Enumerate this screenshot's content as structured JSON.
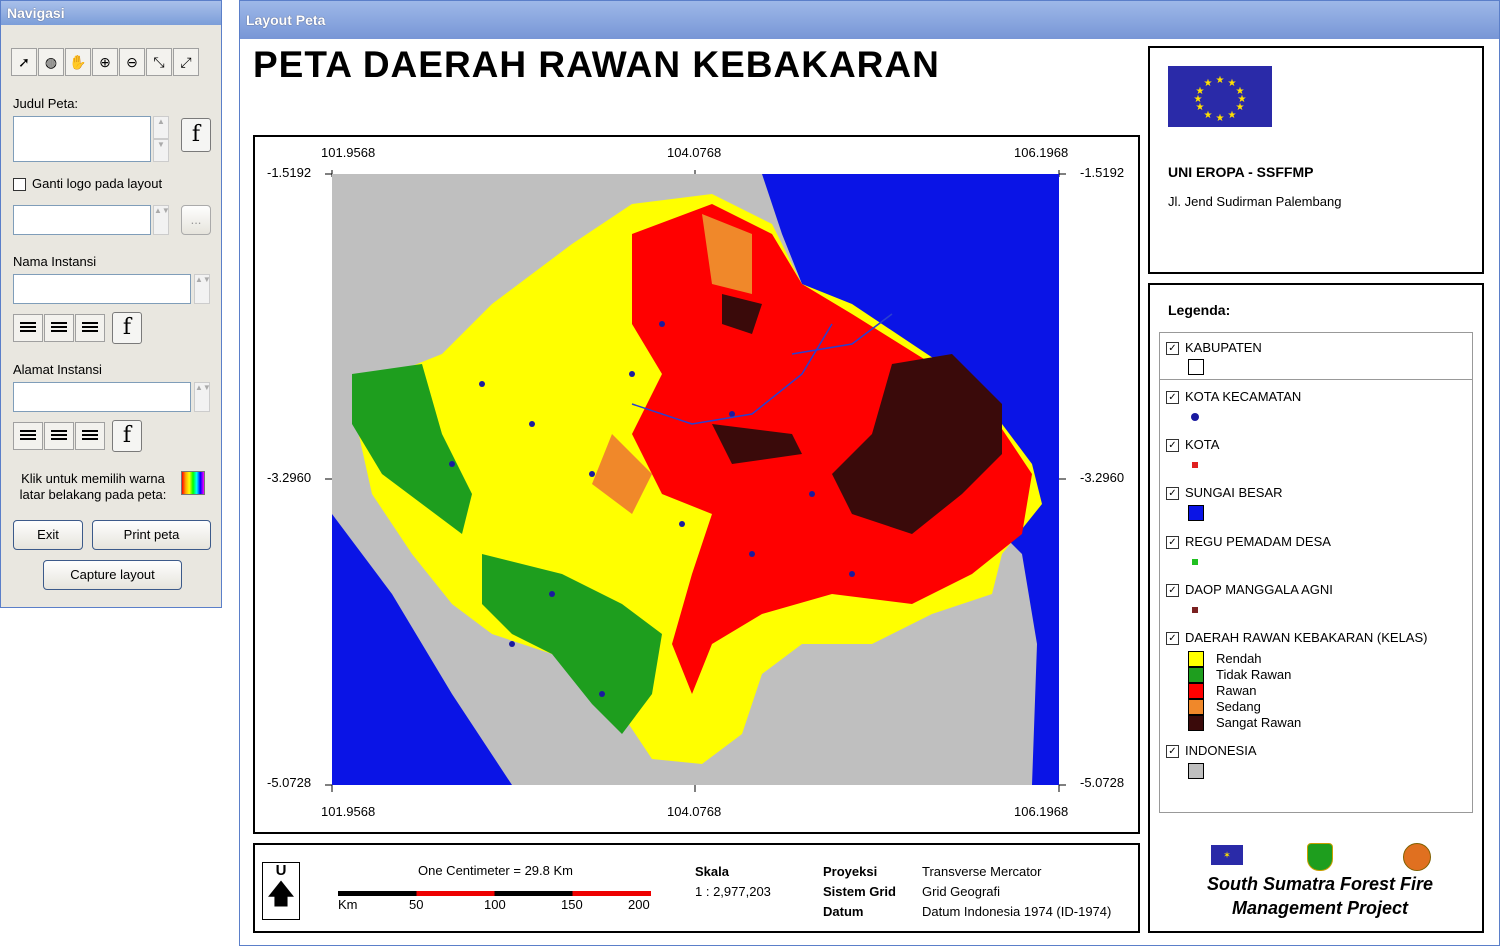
{
  "nav": {
    "title": "Navigasi",
    "tools": [
      "select-icon",
      "globe-zoom-icon",
      "pan-hand-icon",
      "zoom-in-icon",
      "zoom-out-icon",
      "zoom-extent-in-icon",
      "full-extent-icon"
    ],
    "judul_label": "Judul Peta:",
    "ganti_logo_label": "Ganti logo pada layout",
    "nama_instansi_label": "Nama Instansi",
    "alamat_instansi_label": "Alamat Instansi",
    "warna_label_1": "Klik untuk memilih warna",
    "warna_label_2": "latar belakang pada peta:",
    "exit": "Exit",
    "print": "Print peta",
    "capture": "Capture layout",
    "font_label": "f",
    "browse_label": "..."
  },
  "layout": {
    "title": "Layout Peta",
    "map_title": "PETA DAERAH RAWAN KEBAKARAN",
    "coords": {
      "x_left": "101.9568",
      "x_mid": "104.0768",
      "x_right": "106.1968",
      "y_top": "-1.5192",
      "y_mid": "-3.2960",
      "y_bot": "-5.0728"
    },
    "org": {
      "name": "UNI EROPA - SSFFMP",
      "address": "Jl. Jend Sudirman Palembang"
    },
    "legend": {
      "title": "Legenda:",
      "layers": [
        "KABUPATEN",
        "KOTA KECAMATAN",
        "KOTA",
        "SUNGAI BESAR",
        "REGU PEMADAM DESA",
        "DAOP MANGGALA AGNI",
        "DAERAH RAWAN KEBAKARAN (KELAS)",
        "INDONESIA"
      ],
      "classes": [
        {
          "label": "Rendah",
          "color": "#ffff00"
        },
        {
          "label": "Tidak Rawan",
          "color": "#1e9e1e"
        },
        {
          "label": "Rawan",
          "color": "#ff0000"
        },
        {
          "label": "Sedang",
          "color": "#f0882a"
        },
        {
          "label": "Sangat Rawan",
          "color": "#3a0a0a"
        }
      ]
    },
    "footer": {
      "north": "U",
      "scale_text": "One Centimeter = 29.8 Km",
      "scale_labels": [
        "Km",
        "50",
        "100",
        "150",
        "200"
      ],
      "skala_label": "Skala",
      "skala_value": "1 : 2,977,203",
      "proyeksi_label": "Proyeksi",
      "proyeksi_value": "Transverse Mercator",
      "grid_label": "Sistem Grid",
      "grid_value": "Grid Geografi",
      "datum_label": "Datum",
      "datum_value": "Datum Indonesia 1974 (ID-1974)"
    },
    "project": [
      "South Sumatra Forest Fire",
      "Management Project"
    ]
  }
}
